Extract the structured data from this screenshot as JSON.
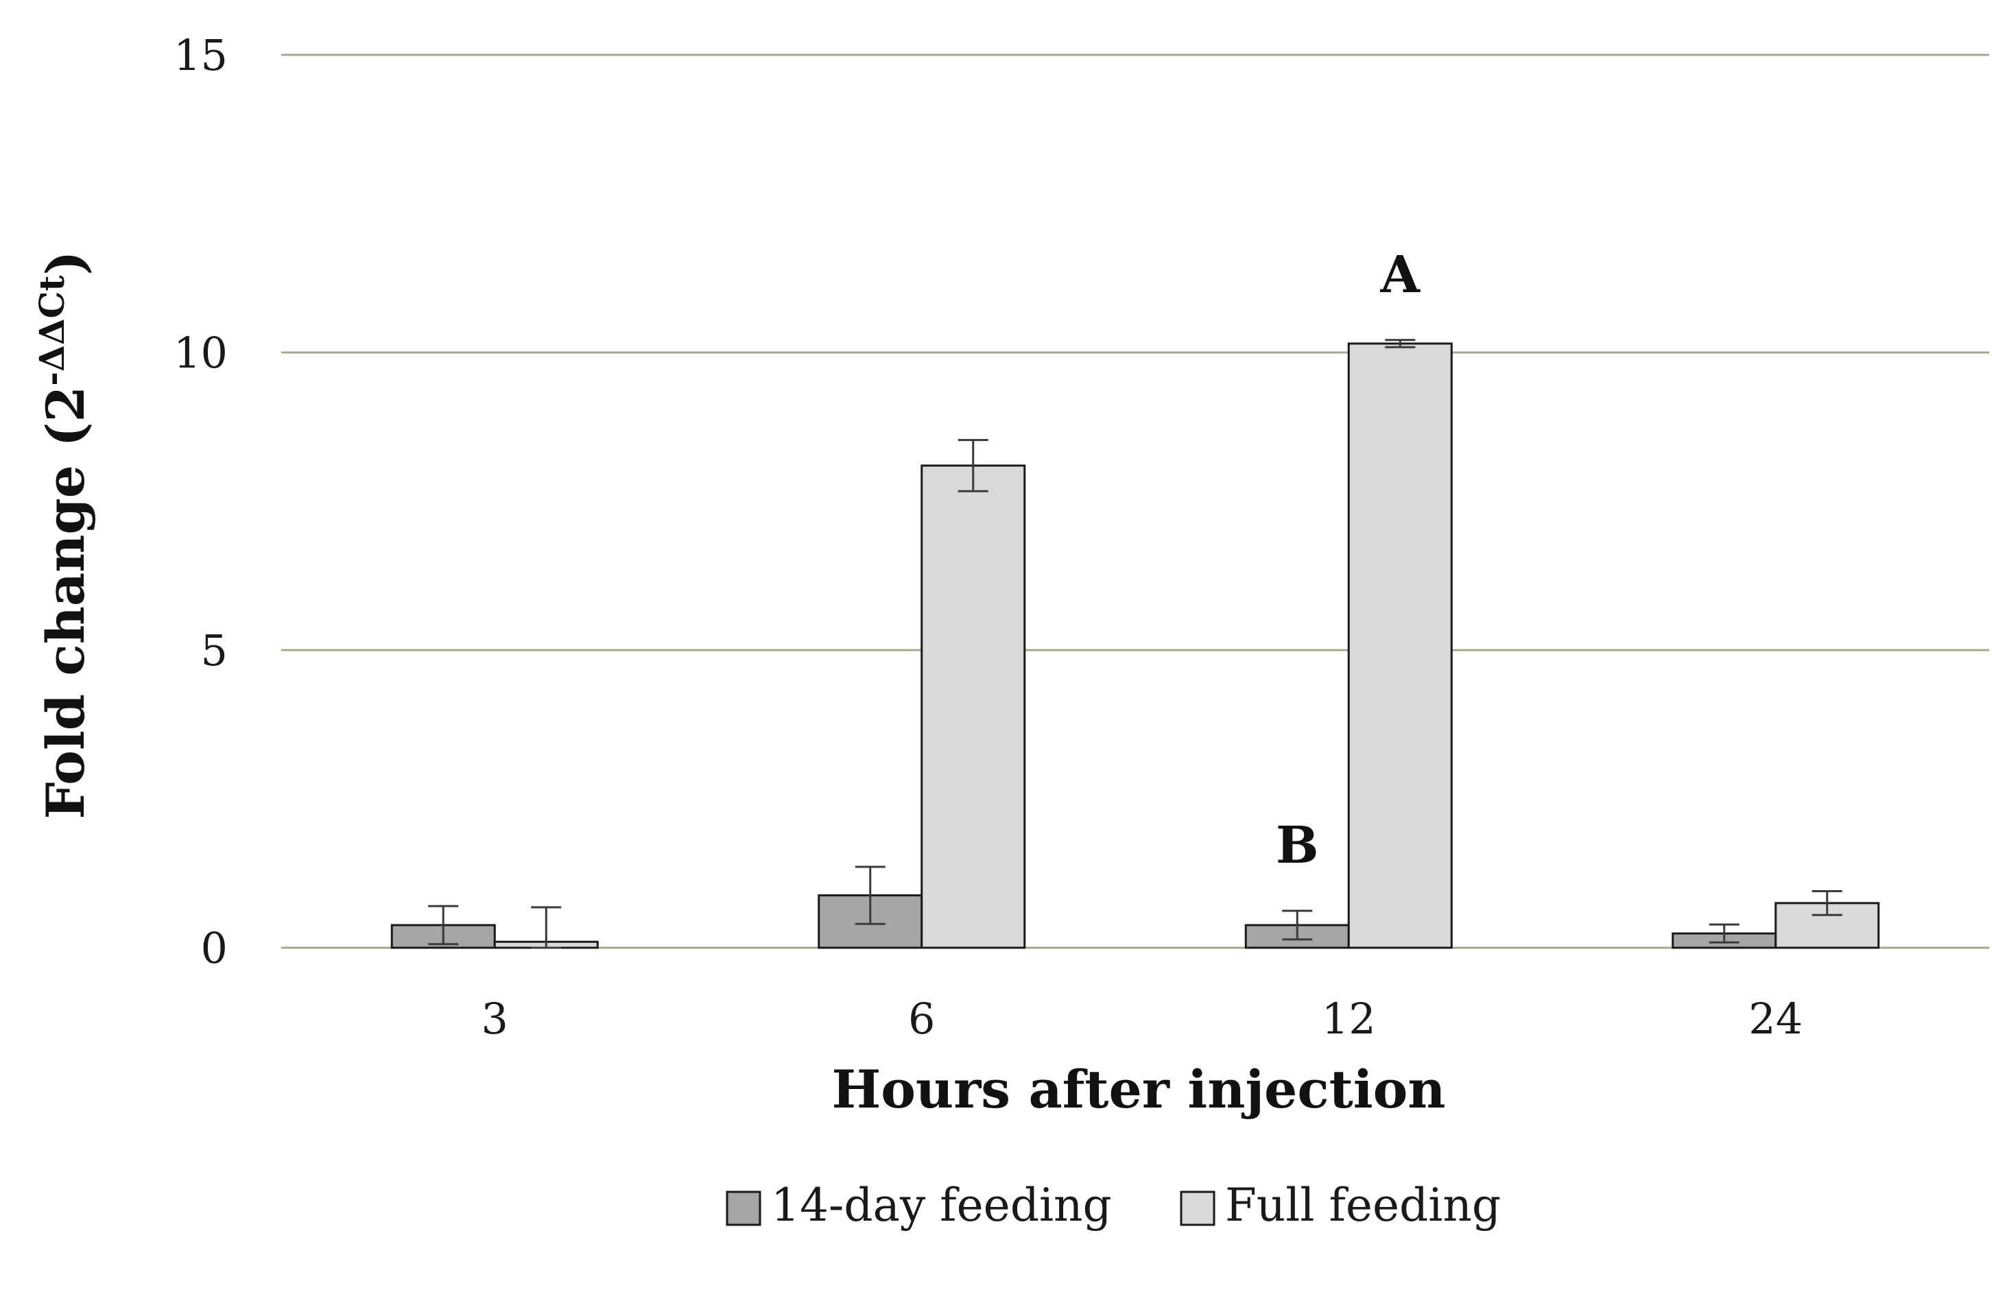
{
  "chart_data": {
    "type": "bar",
    "categories": [
      "3",
      "6",
      "12",
      "24"
    ],
    "series": [
      {
        "name": "14-day feeding",
        "values": [
          0.38,
          0.88,
          0.38,
          0.24
        ],
        "errors": [
          0.32,
          0.48,
          0.24,
          0.15
        ],
        "color": "#a6a6a6"
      },
      {
        "name": "Full feeding",
        "values": [
          0.1,
          8.1,
          10.15,
          0.75
        ],
        "errors": [
          0.58,
          0.43,
          0.06,
          0.2
        ],
        "color": "#d9d9d9"
      }
    ],
    "xlabel": "Hours after injection",
    "ylabel_main": "Fold change (2",
    "ylabel_sup": "-ΔΔCt",
    "ylabel_close": ")",
    "ylim": [
      0,
      15
    ],
    "yticks": [
      0,
      5,
      10,
      15
    ],
    "grid": true,
    "legend_position": "bottom",
    "annotations": [
      {
        "text": "A",
        "category": "12",
        "series": 1
      },
      {
        "text": "B",
        "category": "12",
        "series": 0
      }
    ],
    "colors": {
      "grid": "#a5a98a",
      "bar_stroke": "#1a1a1a",
      "error_bar": "#3a3a3a"
    }
  }
}
